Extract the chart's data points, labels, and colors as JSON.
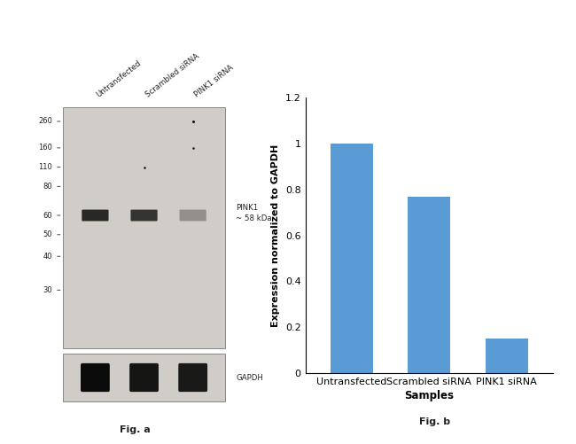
{
  "fig_width": 6.5,
  "fig_height": 5.01,
  "bg_color": "#ffffff",
  "bar_categories": [
    "Untransfected",
    "Scrambled siRNA",
    "PINK1 siRNA"
  ],
  "bar_values": [
    1.0,
    0.77,
    0.15
  ],
  "bar_color": "#5b9bd5",
  "ylabel": "Expression normalized to GAPDH",
  "xlabel": "Samples",
  "ylim": [
    0,
    1.2
  ],
  "yticks": [
    0,
    0.2,
    0.4,
    0.6,
    0.8,
    1.0,
    1.2
  ],
  "fig_a_label": "Fig. a",
  "fig_b_label": "Fig. b",
  "wb_bg_color": "#d0ccc8",
  "mw_markers": [
    260,
    160,
    110,
    80,
    60,
    50,
    40,
    30
  ],
  "pink1_label": "PINK1\n~ 58 kDa",
  "gapdh_label": "GAPDH",
  "sample_labels": [
    "Untransfected",
    "Scrambled siRNA",
    "PINK1 siRNA"
  ],
  "pink1_band_alphas": [
    0.88,
    0.82,
    0.32
  ],
  "gapdh_band_alphas": [
    0.97,
    0.92,
    0.9
  ]
}
